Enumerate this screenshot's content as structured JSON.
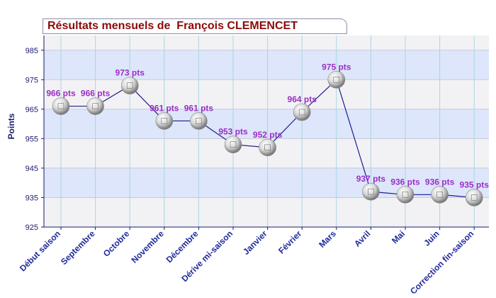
{
  "title": "Résultats mensuels de  François CLEMENCET",
  "chart_data": {
    "type": "line",
    "title": "Résultats mensuels de  François CLEMENCET",
    "xlabel": "",
    "ylabel": "Points",
    "ylim": [
      925,
      990
    ],
    "yticks": [
      925,
      935,
      945,
      955,
      965,
      975,
      985
    ],
    "grid": true,
    "categories": [
      "Début saison",
      "Septembre",
      "Octobre",
      "Novembre",
      "Décembre",
      "Dérive mi-saison",
      "Janvier",
      "Février",
      "Mars",
      "Avril",
      "Mai",
      "Juin",
      "Correction fin-saison"
    ],
    "values": [
      966,
      966,
      973,
      961,
      961,
      953,
      952,
      964,
      975,
      937,
      936,
      936,
      935
    ],
    "labels": [
      "966 pts",
      "966 pts",
      "973 pts",
      "961 pts",
      "961 pts",
      "953 pts",
      "952 pts",
      "964 pts",
      "975 pts",
      "937 pts",
      "936 pts",
      "936 pts",
      "935 pts"
    ],
    "colors": {
      "line": "#1a1a8c",
      "label": "#9b2fc4",
      "band_blue": "#dde6fb",
      "band_gray": "#f2f2f4",
      "title": "#8b0a0a"
    }
  }
}
